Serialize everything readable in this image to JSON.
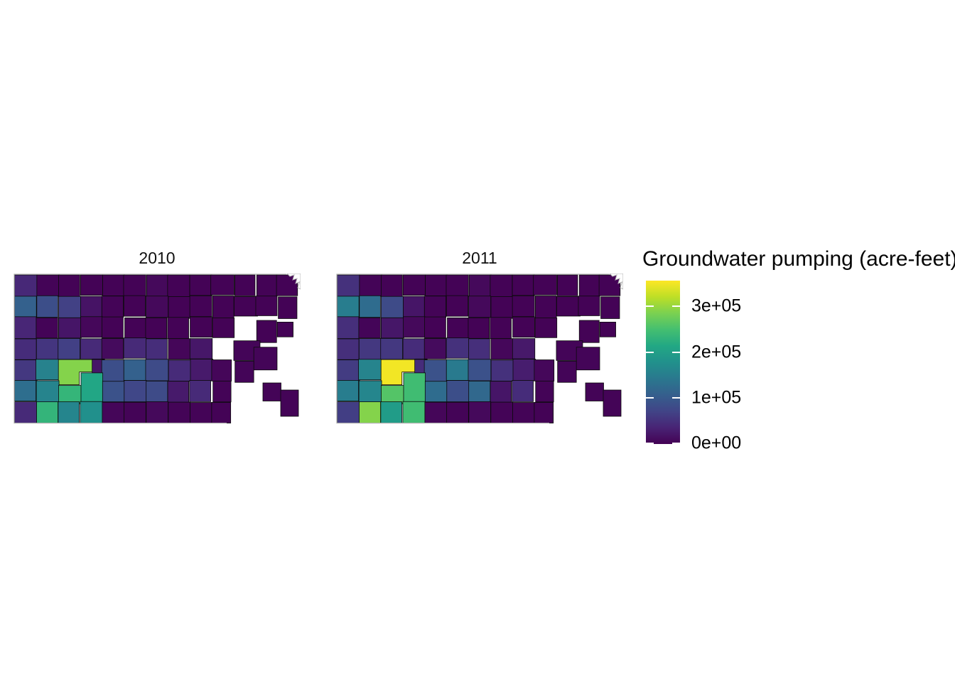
{
  "figure": {
    "background": "#ffffff",
    "legend": {
      "title": "Groundwater pumping (acre-feet)",
      "tick_labels_top_to_bottom": [
        "3e+05",
        "2e+05",
        "1e+05",
        "0e+00"
      ],
      "bar_top_color": "#fde725",
      "bar_bottom_color": "#440154",
      "tick_mark_color": "#ffffff"
    }
  },
  "chart_data": {
    "type": "choropleth",
    "region": "Kansas counties",
    "facets": [
      "2010",
      "2011"
    ],
    "legend_title": "Groundwater pumping (acre-feet)",
    "color_scale": {
      "palette": "viridis",
      "stops": [
        "#440154",
        "#482475",
        "#414487",
        "#355f8d",
        "#2a788e",
        "#21918c",
        "#22a884",
        "#44bf70",
        "#7ad151",
        "#bddf26",
        "#fde725"
      ],
      "domain": [
        0,
        356000
      ],
      "tick_values": [
        0,
        100000,
        200000,
        300000
      ],
      "tick_labels": [
        "0e+00",
        "1e+05",
        "2e+05",
        "3e+05"
      ],
      "missing_value_color": "#ffffff",
      "county_border_color": "#0b0b0b",
      "state_outline_color": "#b4b4b4"
    },
    "grid": {
      "rows": 7,
      "cols": 13,
      "note_null": "null = county with no data (drawn white / absent)"
    },
    "series": [
      {
        "name": "2010",
        "values": [
          [
            40000,
            3000,
            2000,
            2000,
            2000,
            2000,
            8000,
            2000,
            2000,
            2000,
            2000,
            2000,
            2000
          ],
          [
            110000,
            85000,
            68000,
            18000,
            3000,
            2000,
            8000,
            2000,
            2000,
            2000,
            2000,
            2000,
            2000
          ],
          [
            38000,
            3000,
            20000,
            6000,
            2000,
            2000,
            2000,
            2000,
            2000,
            2000,
            null,
            2000,
            2000
          ],
          [
            45000,
            55000,
            67000,
            42000,
            10000,
            42000,
            46000,
            5000,
            22000,
            null,
            4000,
            4000,
            null
          ],
          [
            58000,
            156000,
            290000,
            20000,
            85000,
            110000,
            80000,
            43000,
            25000,
            5000,
            4000,
            null,
            null
          ],
          [
            128000,
            160000,
            234000,
            210000,
            89000,
            75000,
            80000,
            25000,
            42000,
            3000,
            null,
            3000,
            null
          ],
          [
            42000,
            232000,
            161000,
            177000,
            5000,
            3000,
            8000,
            3000,
            3000,
            2000,
            null,
            null,
            3000
          ]
        ]
      },
      {
        "name": "2011",
        "values": [
          [
            50000,
            3000,
            2000,
            2000,
            2000,
            2000,
            8000,
            2000,
            2000,
            2000,
            2000,
            2000,
            2000
          ],
          [
            149000,
            125000,
            80000,
            20000,
            3000,
            2000,
            8000,
            2000,
            2000,
            2000,
            2000,
            2000,
            2000
          ],
          [
            48000,
            4000,
            22000,
            8000,
            2000,
            2000,
            2000,
            2000,
            2000,
            2000,
            null,
            2000,
            2000
          ],
          [
            48000,
            58000,
            58000,
            45000,
            10000,
            50000,
            48000,
            6000,
            24000,
            null,
            4000,
            4000,
            null
          ],
          [
            62000,
            160000,
            350000,
            45000,
            89000,
            145000,
            88000,
            50000,
            28000,
            6000,
            4000,
            null,
            null
          ],
          [
            150000,
            162000,
            260000,
            245000,
            125000,
            85000,
            120000,
            20000,
            45000,
            3000,
            null,
            3000,
            null
          ],
          [
            65000,
            290000,
            195000,
            245000,
            5000,
            3000,
            8000,
            3000,
            3000,
            2000,
            null,
            null,
            3000
          ]
        ]
      }
    ]
  }
}
